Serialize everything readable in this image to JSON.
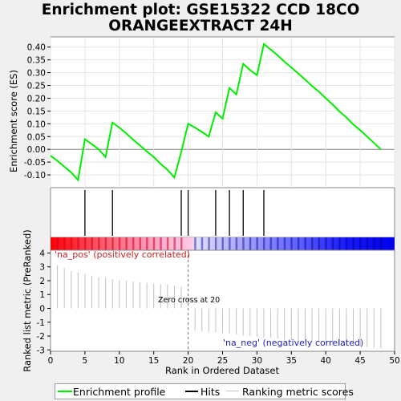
{
  "title": {
    "line1": "Enrichment plot: GSE15322 CCD 18CO",
    "line2": "ORANGEEXTRACT 24H"
  },
  "colors": {
    "enrichment_line": "#00ee00",
    "hits": "#000000",
    "ranking_metric": "#c0c0c0",
    "positive_band": "#ff0000",
    "negative_band": "#0000ff"
  },
  "labels": {
    "pos_label": "'na_pos' (positively correlated)",
    "neg_label": "'na_neg' (negatively correlated)",
    "zero_cross": "Zero cross at 20"
  },
  "legend": {
    "enrichment": "Enrichment profile",
    "hits": "Hits",
    "ranking": "Ranking metric scores"
  },
  "chart_data": [
    {
      "type": "line",
      "name": "enrichment-profile",
      "ylabel": "Enrichment score (ES)",
      "ylim": [
        -0.15,
        0.44
      ],
      "xlim": [
        0,
        50
      ],
      "yticks": [
        -0.1,
        -0.05,
        0.0,
        0.05,
        0.1,
        0.15,
        0.2,
        0.25,
        0.3,
        0.35,
        0.4
      ],
      "ytick_labels": [
        "-0.10",
        "-0.05",
        "0.00",
        "0.05",
        "0.10",
        "0.15",
        "0.20",
        "0.25",
        "0.30",
        "0.35",
        "0.40"
      ],
      "grid": true,
      "x": [
        0,
        1,
        2,
        3,
        4,
        5,
        6,
        7,
        8,
        9,
        10,
        11,
        12,
        13,
        14,
        15,
        16,
        17,
        18,
        19,
        20,
        21,
        22,
        23,
        24,
        25,
        26,
        27,
        28,
        29,
        30,
        31,
        32,
        33,
        34,
        35,
        36,
        37,
        38,
        39,
        40,
        41,
        42,
        43,
        44,
        45,
        46,
        47,
        48
      ],
      "y": [
        -0.025,
        -0.045,
        -0.068,
        -0.09,
        -0.12,
        0.04,
        0.02,
        0.0,
        -0.03,
        0.105,
        0.085,
        0.062,
        0.038,
        0.015,
        -0.008,
        -0.03,
        -0.057,
        -0.08,
        -0.11,
        -0.01,
        0.1,
        0.085,
        0.068,
        0.05,
        0.145,
        0.12,
        0.24,
        0.215,
        0.335,
        0.31,
        0.29,
        0.412,
        0.39,
        0.368,
        0.343,
        0.32,
        0.297,
        0.273,
        0.248,
        0.226,
        0.2,
        0.175,
        0.148,
        0.125,
        0.097,
        0.075,
        0.05,
        0.025,
        0.0
      ]
    },
    {
      "type": "scatter",
      "name": "hits",
      "x": [
        5,
        9,
        19,
        20,
        24,
        26,
        28,
        31
      ]
    },
    {
      "type": "bar",
      "name": "ranking-metric-scores",
      "xlabel": "Rank in Ordered Dataset",
      "ylabel": "Ranked list metric (PreRanked)",
      "ylim": [
        -3.1,
        4.2
      ],
      "yticks": [
        -3,
        -2,
        -1,
        0,
        1,
        2,
        3,
        4
      ],
      "xticks": [
        0,
        5,
        10,
        15,
        20,
        25,
        30,
        35,
        40,
        45,
        50
      ],
      "x": [
        1,
        2,
        3,
        4,
        5,
        6,
        7,
        8,
        9,
        10,
        11,
        12,
        13,
        14,
        15,
        16,
        17,
        18,
        19,
        21,
        22,
        23,
        24,
        25,
        26,
        27,
        28,
        29,
        30,
        31,
        32,
        33,
        34,
        35,
        36,
        37,
        38,
        39,
        40,
        41,
        42,
        43,
        44,
        45,
        46,
        47,
        48
      ],
      "values": [
        3.1,
        2.9,
        2.7,
        2.6,
        2.5,
        2.35,
        2.25,
        2.2,
        2.1,
        2.05,
        2.0,
        1.95,
        1.9,
        1.85,
        1.8,
        1.75,
        1.7,
        1.65,
        1.6,
        -1.6,
        -1.65,
        -1.7,
        -1.75,
        -1.8,
        -1.85,
        -1.9,
        -1.95,
        -2.0,
        -2.05,
        -2.1,
        -2.15,
        -2.2,
        -2.25,
        -2.3,
        -2.35,
        -2.4,
        -2.45,
        -2.5,
        -2.55,
        -2.6,
        -2.65,
        -2.7,
        -2.72,
        -2.75,
        -2.8,
        -2.85,
        -2.9
      ]
    }
  ]
}
